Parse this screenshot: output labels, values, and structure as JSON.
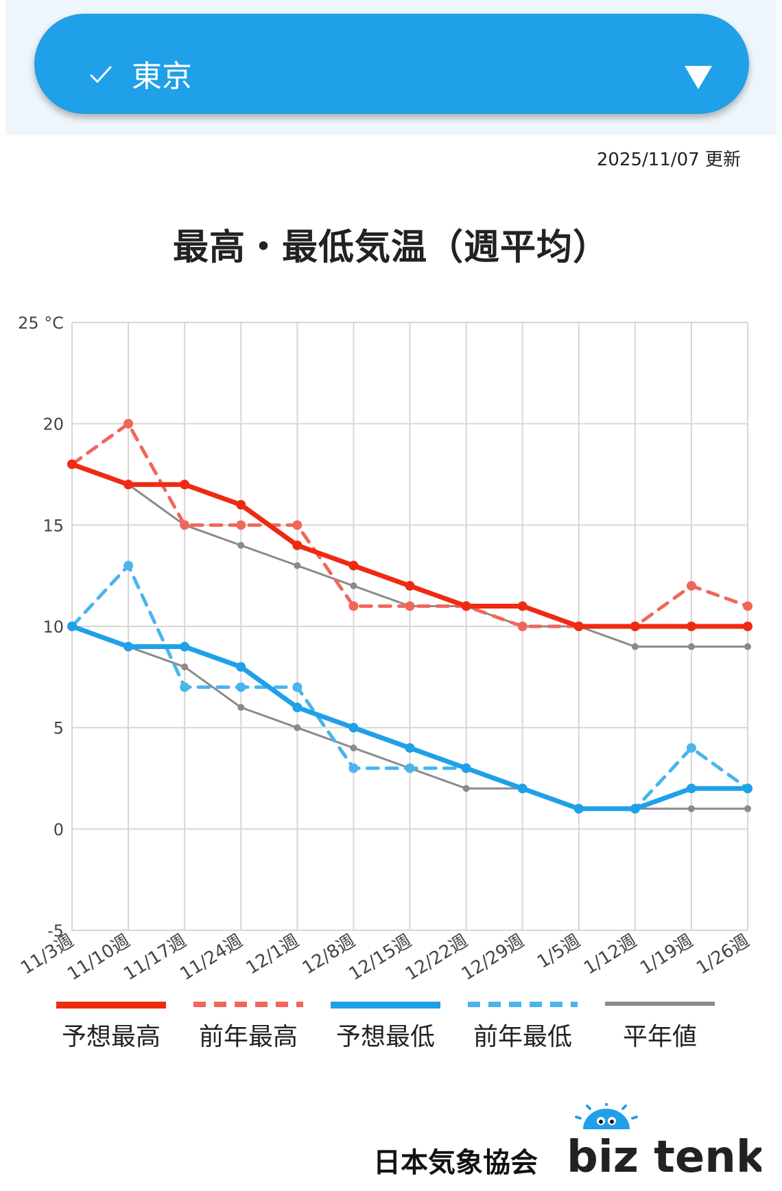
{
  "header": {
    "selected_region": "東京",
    "check_icon": "check-icon",
    "dropdown_icon": "triangle-down-icon",
    "updated": "2025/11/07 更新"
  },
  "chart_title": "最高・最低気温（週平均）",
  "colors": {
    "forecast_high": "#ee2a12",
    "prev_high": "#f0675a",
    "forecast_low": "#1fa0e8",
    "prev_low": "#4ab4ec",
    "normal": "#8a8a8a",
    "grid": "#d6d6d6",
    "accent": "#1fa0e8"
  },
  "chart_data": {
    "type": "line",
    "title": "最高・最低気温（週平均）",
    "ylabel": "°C",
    "ylim": [
      -5,
      25
    ],
    "yticks": [
      -5,
      0,
      5,
      10,
      15,
      20,
      25
    ],
    "ytick_labels": [
      "-5",
      "0",
      "5",
      "10",
      "15",
      "20",
      "25 °C"
    ],
    "x": [
      "11/3週",
      "11/10週",
      "11/17週",
      "11/24週",
      "12/1週",
      "12/8週",
      "12/15週",
      "12/22週",
      "12/29週",
      "1/5週",
      "1/12週",
      "1/19週",
      "1/26週"
    ],
    "grid": true,
    "legend_position": "bottom",
    "series": [
      {
        "name": "予想最高",
        "style": "solid-thick",
        "values": [
          18,
          17,
          17,
          16,
          14,
          13,
          12,
          11,
          11,
          10,
          10,
          10,
          10
        ]
      },
      {
        "name": "前年最高",
        "style": "dashed",
        "values": [
          18,
          20,
          15,
          15,
          15,
          11,
          11,
          11,
          10,
          10,
          10,
          12,
          11
        ]
      },
      {
        "name": "予想最低",
        "style": "solid-thick",
        "values": [
          10,
          9,
          9,
          8,
          6,
          5,
          4,
          3,
          2,
          1,
          1,
          2,
          2
        ]
      },
      {
        "name": "前年最低",
        "style": "dashed",
        "values": [
          10,
          13,
          7,
          7,
          7,
          3,
          3,
          3,
          2,
          1,
          1,
          4,
          2
        ]
      },
      {
        "name": "平年値",
        "style": "solid-thin",
        "values": [
          18,
          17,
          15,
          14,
          13,
          12,
          11,
          11,
          10,
          10,
          9,
          9,
          9
        ]
      },
      {
        "name": "平年値",
        "style": "solid-thin",
        "values": [
          10,
          9,
          8,
          6,
          5,
          4,
          3,
          2,
          2,
          1,
          1,
          1,
          1
        ]
      }
    ]
  },
  "legend": [
    {
      "label": "予想最高"
    },
    {
      "label": "前年最高"
    },
    {
      "label": "予想最低"
    },
    {
      "label": "前年最低"
    },
    {
      "label": "平年値"
    }
  ],
  "footer": {
    "org_name": "日本気象協会",
    "brand": "biz tenki"
  }
}
